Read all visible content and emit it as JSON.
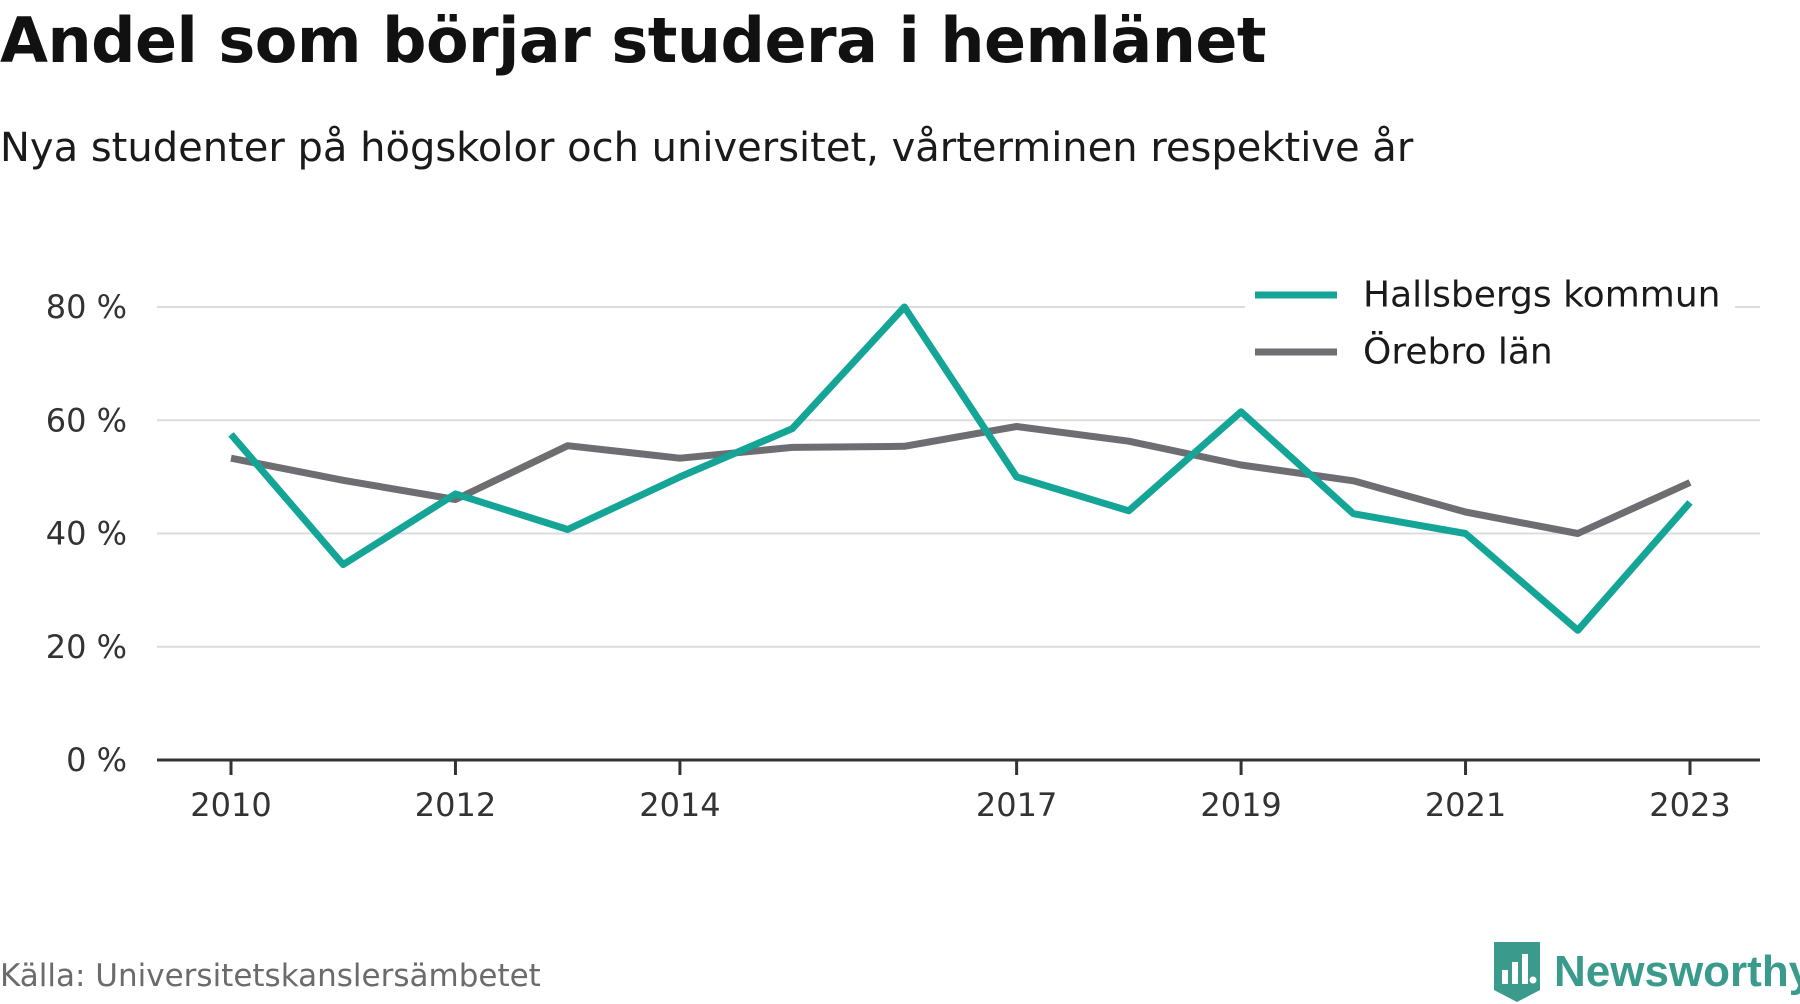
{
  "title": "Andel som börjar studera i hemlänet",
  "subtitle": "Nya studenter på högskolor och universitet, vårterminen respektive år",
  "source": "Källa: Universitetskanslersämbetet",
  "brand": {
    "name": "Newsworthy",
    "color": "#3a9a8c",
    "icon": "newsworthy-logo-icon"
  },
  "chart_data": {
    "type": "line",
    "x": [
      2010,
      2011,
      2012,
      2013,
      2014,
      2015,
      2016,
      2017,
      2018,
      2019,
      2020,
      2021,
      2022,
      2023
    ],
    "x_ticks": [
      "2010",
      "2012",
      "2014",
      "2017",
      "2019",
      "2021",
      "2023"
    ],
    "y_ticks": [
      "0 %",
      "20 %",
      "40 %",
      "60 %",
      "80 %"
    ],
    "ylim": [
      0,
      80
    ],
    "grid": true,
    "legend_position": "top-right",
    "series": [
      {
        "name": "Hallsbergs kommun",
        "color": "#14a597",
        "values": [
          57.5,
          34.5,
          47.0,
          40.7,
          50.0,
          58.5,
          80.0,
          50.0,
          44.0,
          61.5,
          43.5,
          40.0,
          22.9,
          45.5
        ]
      },
      {
        "name": "Örebro län",
        "color": "#6e6d72",
        "values": [
          53.3,
          49.4,
          46.0,
          55.5,
          53.3,
          55.2,
          55.4,
          58.9,
          56.3,
          52.1,
          49.3,
          43.8,
          40.0,
          49.0
        ]
      }
    ]
  }
}
